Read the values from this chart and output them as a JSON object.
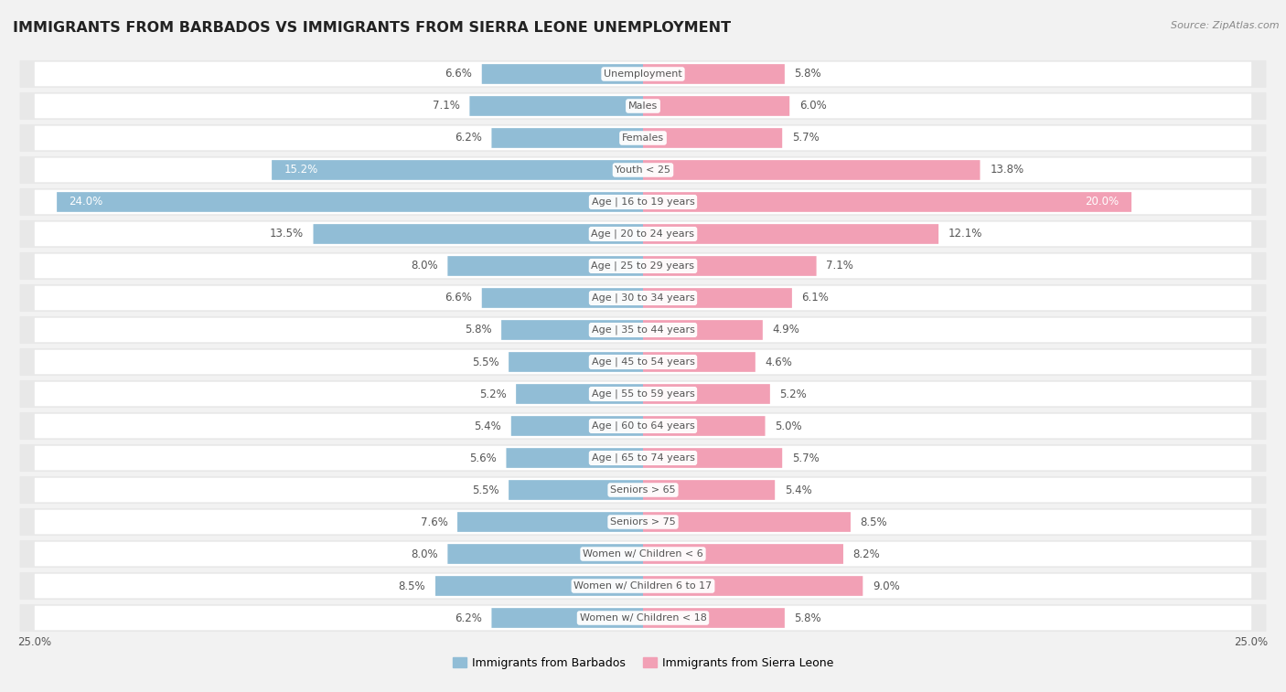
{
  "title": "IMMIGRANTS FROM BARBADOS VS IMMIGRANTS FROM SIERRA LEONE UNEMPLOYMENT",
  "source": "Source: ZipAtlas.com",
  "categories": [
    "Unemployment",
    "Males",
    "Females",
    "Youth < 25",
    "Age | 16 to 19 years",
    "Age | 20 to 24 years",
    "Age | 25 to 29 years",
    "Age | 30 to 34 years",
    "Age | 35 to 44 years",
    "Age | 45 to 54 years",
    "Age | 55 to 59 years",
    "Age | 60 to 64 years",
    "Age | 65 to 74 years",
    "Seniors > 65",
    "Seniors > 75",
    "Women w/ Children < 6",
    "Women w/ Children 6 to 17",
    "Women w/ Children < 18"
  ],
  "barbados_values": [
    6.6,
    7.1,
    6.2,
    15.2,
    24.0,
    13.5,
    8.0,
    6.6,
    5.8,
    5.5,
    5.2,
    5.4,
    5.6,
    5.5,
    7.6,
    8.0,
    8.5,
    6.2
  ],
  "sierra_leone_values": [
    5.8,
    6.0,
    5.7,
    13.8,
    20.0,
    12.1,
    7.1,
    6.1,
    4.9,
    4.6,
    5.2,
    5.0,
    5.7,
    5.4,
    8.5,
    8.2,
    9.0,
    5.8
  ],
  "barbados_color": "#91bdd6",
  "sierra_leone_color": "#f2a0b5",
  "axis_limit": 25.0,
  "background_color": "#f2f2f2",
  "row_bg_color": "#e8e8e8",
  "row_inner_color": "#ffffff",
  "label_color": "#666666",
  "title_color": "#222222",
  "value_label_dark": "#555555",
  "value_label_white": "#ffffff"
}
